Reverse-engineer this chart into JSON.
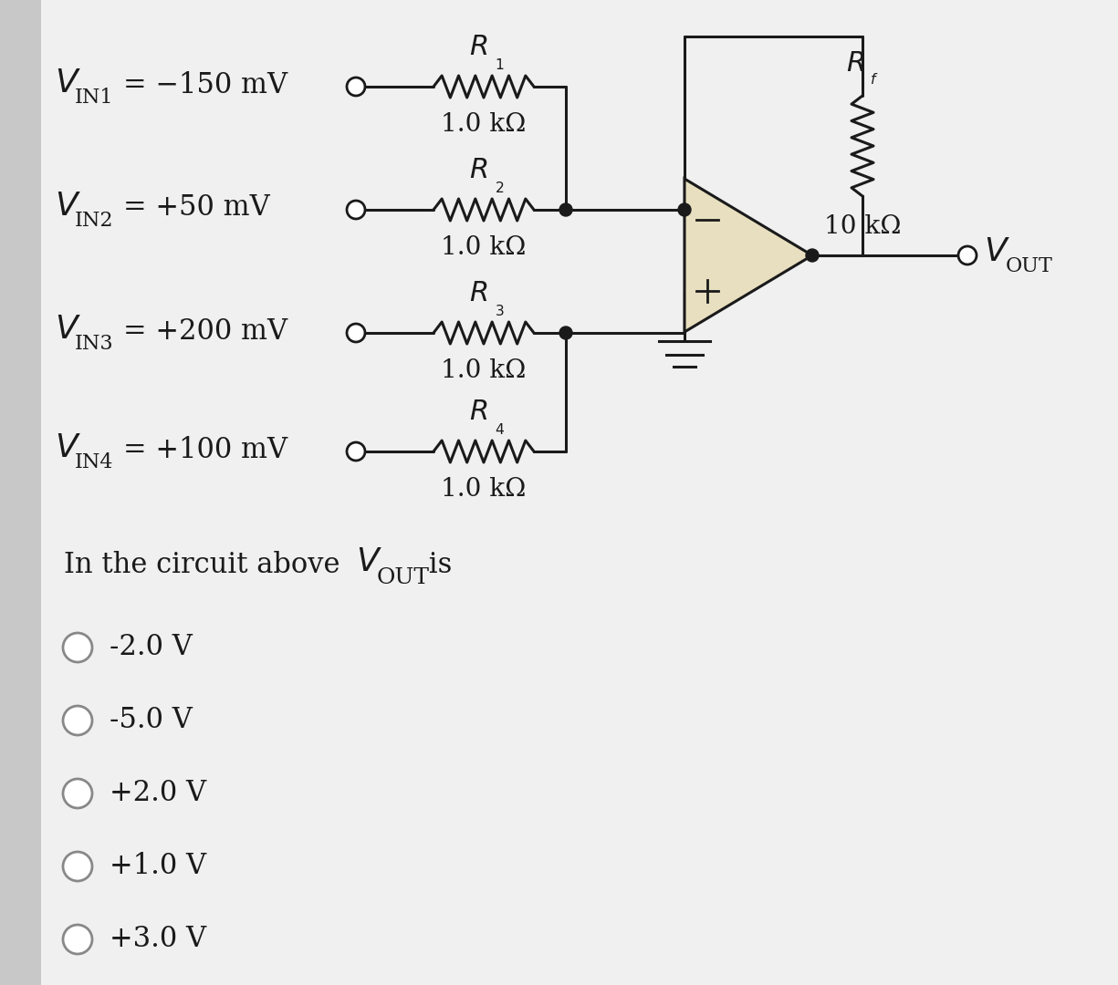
{
  "bg_color": "#e8e8e8",
  "circuit_color": "#1a1a1a",
  "opamp_fill": "#e8dfc0",
  "options": [
    "-2.0 V",
    "-5.0 V",
    "+2.0 V",
    "+1.0 V",
    "+3.0 V"
  ],
  "vin1_text": "= −150 mV",
  "vin2_text": "= +50 mV",
  "vin3_text": "= +200 mV",
  "vin4_text": "= +100 mV",
  "r_val": "1.0 kΩ",
  "rf_val": "10 kΩ",
  "question": "In the circuit above ",
  "question_v": "V",
  "question_out": "OUT",
  "question_is": " is"
}
